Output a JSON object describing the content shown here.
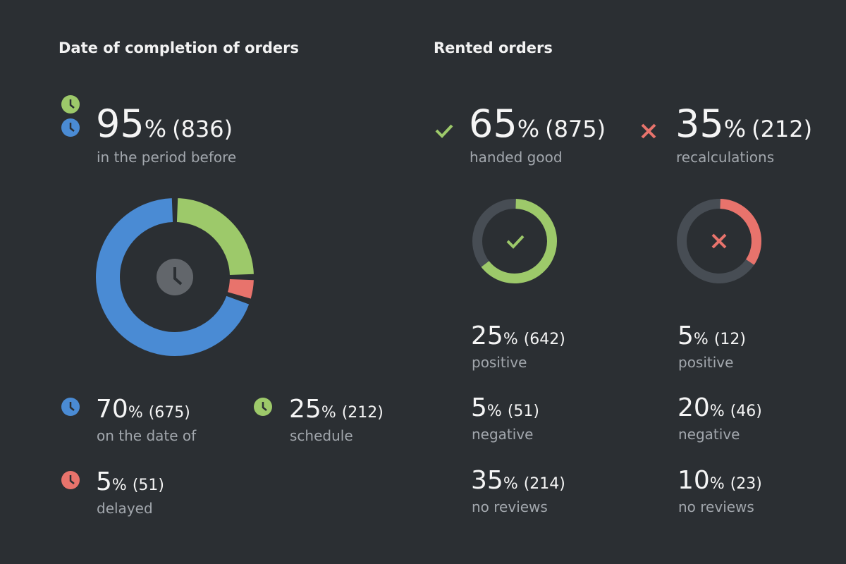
{
  "percent_sign": "%",
  "completion": {
    "title": "Date of completion of orders",
    "summary": {
      "value": 95,
      "count": "(836)",
      "label": "in the period before"
    },
    "items": [
      {
        "value": 70,
        "count": "(675)",
        "label": "on the date of",
        "color": "#4a8bd4"
      },
      {
        "value": 25,
        "count": "(212)",
        "label": "schedule",
        "color": "#9dc96a"
      },
      {
        "value": 5,
        "count": "(51)",
        "label": "delayed",
        "color": "#e8736c"
      }
    ]
  },
  "rented": {
    "title": "Rented orders",
    "groups": [
      {
        "value": 65,
        "count": "(875)",
        "label": "handed good",
        "color": "#9dc96a",
        "items": [
          {
            "value": 25,
            "count": "(642)",
            "label": "positive"
          },
          {
            "value": 5,
            "count": "(51)",
            "label": "negative"
          },
          {
            "value": 35,
            "count": "(214)",
            "label": "no reviews"
          }
        ]
      },
      {
        "value": 35,
        "count": "(212)",
        "label": "recalculations",
        "color": "#e8736c",
        "items": [
          {
            "value": 5,
            "count": "(12)",
            "label": "positive"
          },
          {
            "value": 20,
            "count": "(46)",
            "label": "negative"
          },
          {
            "value": 10,
            "count": "(23)",
            "label": "no reviews"
          }
        ]
      }
    ]
  }
}
